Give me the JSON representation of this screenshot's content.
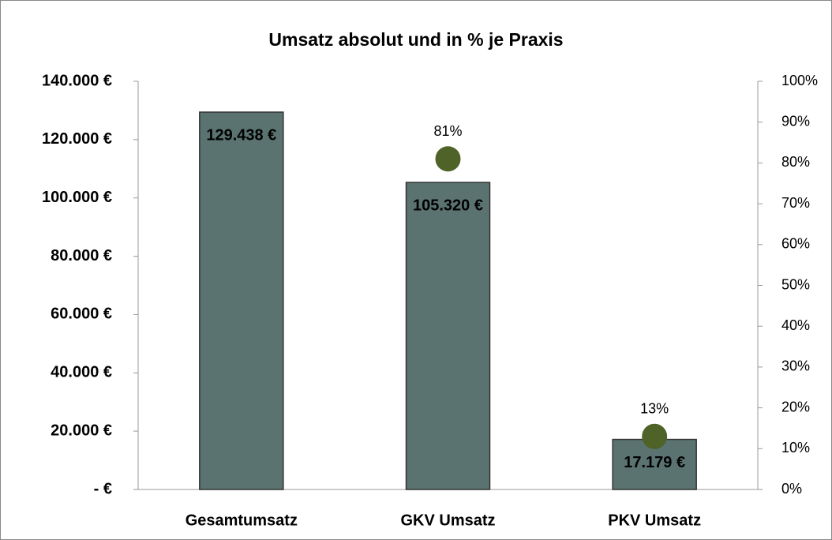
{
  "chart_data": {
    "type": "bar",
    "title": "Umsatz absolut und in % je Praxis",
    "categories": [
      "Gesamtumsatz",
      "GKV Umsatz",
      "PKV Umsatz"
    ],
    "series": [
      {
        "type": "bar",
        "color": "#5a7370",
        "values": [
          129438,
          105320,
          17179
        ],
        "value_labels": [
          "129.438 €",
          "105.320 €",
          "17.179 €"
        ]
      },
      {
        "type": "scatter",
        "axis": "y2",
        "color": "#4f6228",
        "values": [
          null,
          81,
          13
        ],
        "value_labels": [
          null,
          "81%",
          "13%"
        ]
      }
    ],
    "ylim": [
      0,
      140000
    ],
    "yticks": [
      {
        "value": 0,
        "label": "-   €"
      },
      {
        "value": 20000,
        "label": "20.000 €"
      },
      {
        "value": 40000,
        "label": "40.000 €"
      },
      {
        "value": 60000,
        "label": "60.000 €"
      },
      {
        "value": 80000,
        "label": "80.000 €"
      },
      {
        "value": 100000,
        "label": "100.000 €"
      },
      {
        "value": 120000,
        "label": "120.000 €"
      },
      {
        "value": 140000,
        "label": "140.000 €"
      }
    ],
    "y2lim": [
      0,
      100
    ],
    "y2ticks": [
      {
        "value": 0,
        "label": "0%"
      },
      {
        "value": 10,
        "label": "10%"
      },
      {
        "value": 20,
        "label": "20%"
      },
      {
        "value": 30,
        "label": "30%"
      },
      {
        "value": 40,
        "label": "40%"
      },
      {
        "value": 50,
        "label": "50%"
      },
      {
        "value": 60,
        "label": "60%"
      },
      {
        "value": 70,
        "label": "70%"
      },
      {
        "value": 80,
        "label": "80%"
      },
      {
        "value": 90,
        "label": "90%"
      },
      {
        "value": 100,
        "label": "100%"
      }
    ],
    "grid": false
  }
}
